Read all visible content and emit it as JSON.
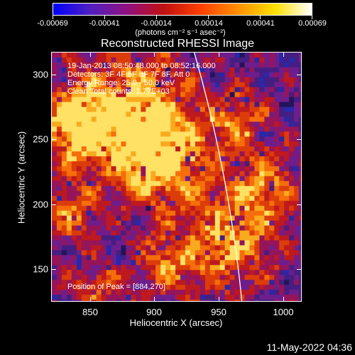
{
  "colorbar": {
    "labels": [
      "-0.00069",
      "-0.00041",
      "-0.00014",
      "0.00014",
      "0.00041",
      "0.00069"
    ],
    "unit": "(photons cm⁻² s⁻¹ asec⁻²)",
    "colors": [
      "#0000ff",
      "#5020c0",
      "#901080",
      "#c01010",
      "#ff4000",
      "#ff9000",
      "#ffe000",
      "#ffffff"
    ]
  },
  "title": "Reconstructed RHESSI Image",
  "annotations": {
    "time": "19-Jan-2013 08:50:48.000 to 08:52:16.000",
    "detectors": "Detectors: 3F 4F 5F 6F 7F 8F, Att 0",
    "energy": "Energy Range: 25.0 - 50.0 keV",
    "clean": "Clean     Total counts: 1.77E+03",
    "peak": "Position of Peak = [884,270]"
  },
  "axes": {
    "xlabel": "Heliocentric X (arcsec)",
    "ylabel": "Heliocentric Y (arcsec)",
    "xticks": [
      "850",
      "900",
      "950",
      "1000"
    ],
    "yticks": [
      "300",
      "250",
      "200",
      "150"
    ]
  },
  "datestamp": "11-May-2022 04:36"
}
